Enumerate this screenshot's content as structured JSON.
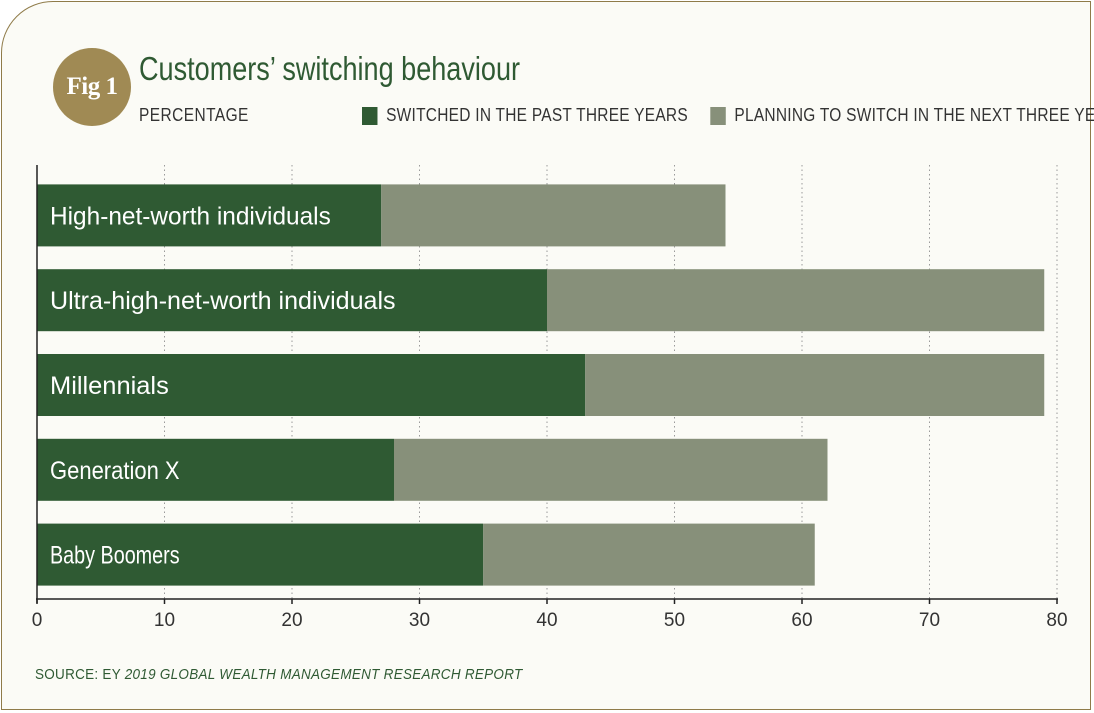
{
  "badge": "Fig 1",
  "colors": {
    "switched": "#2f5a33",
    "planning": "#87907a",
    "accent": "#a08a54",
    "gridline": "#9a9a9a"
  },
  "chart_data": {
    "type": "bar",
    "orientation": "horizontal",
    "stacked": true,
    "title": "Customers’ switching behaviour",
    "subtitle": "PERCENTAGE",
    "categories": [
      "High-net-worth individuals",
      "Ultra-high-net-worth individuals",
      "Millennials",
      "Generation X",
      "Baby Boomers"
    ],
    "series": [
      {
        "name": "SWITCHED IN THE PAST THREE YEARS",
        "values": [
          27,
          40,
          43,
          28,
          35
        ]
      },
      {
        "name": "PLANNING TO SWITCH IN THE NEXT THREE YEARS",
        "values": [
          27,
          39,
          36,
          34,
          26
        ]
      }
    ],
    "xlim": [
      0,
      80
    ],
    "xticks": [
      "0",
      "10",
      "20",
      "30",
      "40",
      "50",
      "60",
      "70",
      "80"
    ],
    "grid": "vertical-dotted",
    "legend_position": "top"
  },
  "source": {
    "prefix": "SOURCE:  EY ",
    "title": "2019 GLOBAL WEALTH MANAGEMENT RESEARCH REPORT"
  }
}
